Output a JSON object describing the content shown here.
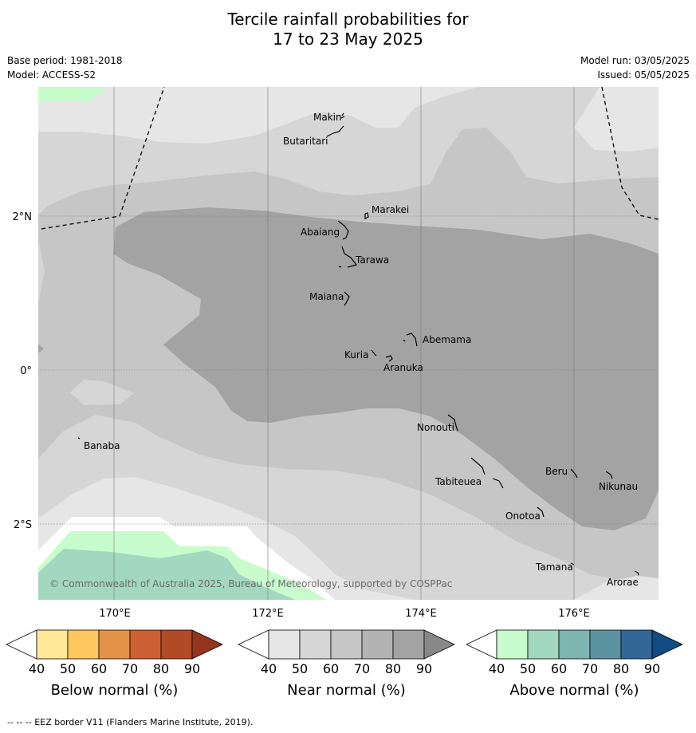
{
  "title": {
    "line1": "Tercile rainfall probabilities for",
    "line2": "17 to 23 May 2025"
  },
  "info": {
    "base_period": "Base period: 1981-2018",
    "model": "Model: ACCESS-S2",
    "model_run": "Model run: 03/05/2025",
    "issued": "Issued: 05/05/2025"
  },
  "map": {
    "lat_labels": [
      "2°N",
      "0°",
      "2°S"
    ],
    "lon_labels": [
      "170°E",
      "172°E",
      "174°E",
      "176°E"
    ],
    "copyright": "© Commonwealth of Australia 2025, Bureau of Meteorology, supported by COSPPac",
    "islands": [
      "Makin",
      "Butaritari",
      "Marakei",
      "Abaiang",
      "Tarawa",
      "Maiana",
      "Abemama",
      "Kuria",
      "Aranuka",
      "Nonouti",
      "Banaba",
      "Tabiteuea",
      "Beru",
      "Nikunau",
      "Onotoa",
      "Tamana",
      "Arorae"
    ],
    "colors": {
      "near_40_50": "#e6e6e6",
      "near_50_60": "#d6d6d6",
      "near_60_70": "#c6c6c6",
      "near_70_80": "#b3b3b3",
      "near_80_90": "#a3a3a3",
      "above_40_50": "#c8fccc",
      "above_50_60": "#a2d8bf"
    }
  },
  "colorbars": [
    {
      "label": "Below normal (%)",
      "ticks": [
        "40",
        "50",
        "60",
        "70",
        "80",
        "90"
      ],
      "colors": [
        "#ffffff",
        "#ffe999",
        "#ffc760",
        "#e4924a",
        "#cd6032",
        "#b04a27",
        "#953520"
      ]
    },
    {
      "label": "Near normal (%)",
      "ticks": [
        "40",
        "50",
        "60",
        "70",
        "80",
        "90"
      ],
      "colors": [
        "#ffffff",
        "#e6e6e6",
        "#d6d6d6",
        "#c6c6c6",
        "#b3b3b3",
        "#a3a3a3",
        "#888888"
      ]
    },
    {
      "label": "Above normal (%)",
      "ticks": [
        "40",
        "50",
        "60",
        "70",
        "80",
        "90"
      ],
      "colors": [
        "#ffffff",
        "#c8fccc",
        "#a2d8bf",
        "#7db5b0",
        "#5b93a1",
        "#336699",
        "#124a82"
      ]
    }
  ],
  "footnote": "--  --  -- EEZ border V11 (Flanders Marine Institute, 2019)."
}
